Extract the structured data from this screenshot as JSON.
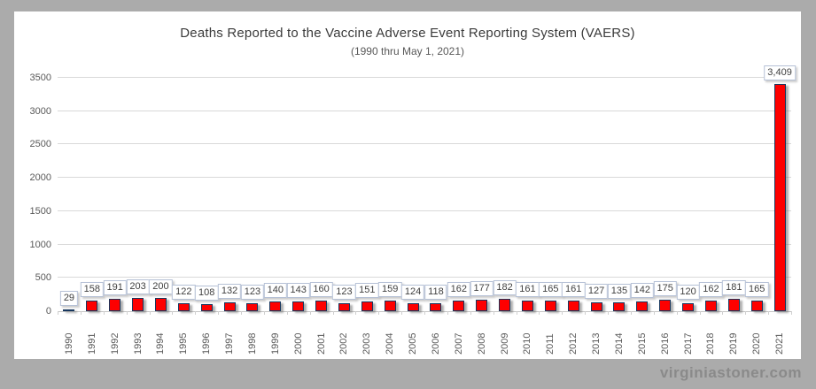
{
  "page": {
    "watermark": "virginiastoner.com"
  },
  "chart_data": {
    "type": "bar",
    "title": "Deaths Reported to the Vaccine Adverse Event Reporting System (VAERS)",
    "subtitle": "(1990 thru May 1, 2021)",
    "categories": [
      "1990",
      "1991",
      "1992",
      "1993",
      "1994",
      "1995",
      "1996",
      "1997",
      "1998",
      "1999",
      "2000",
      "2001",
      "2002",
      "2003",
      "2004",
      "2005",
      "2006",
      "2007",
      "2008",
      "2009",
      "2010",
      "2011",
      "2012",
      "2013",
      "2014",
      "2015",
      "2016",
      "2017",
      "2018",
      "2019",
      "2020",
      "2021"
    ],
    "values": [
      29,
      158,
      191,
      203,
      200,
      122,
      108,
      132,
      123,
      140,
      143,
      160,
      123,
      151,
      159,
      124,
      118,
      162,
      177,
      182,
      161,
      165,
      161,
      127,
      135,
      142,
      175,
      120,
      162,
      181,
      165,
      3409
    ],
    "value_labels": [
      "29",
      "158",
      "191",
      "203",
      "200",
      "122",
      "108",
      "132",
      "123",
      "140",
      "143",
      "160",
      "123",
      "151",
      "159",
      "124",
      "118",
      "162",
      "177",
      "182",
      "161",
      "165",
      "161",
      "127",
      "135",
      "142",
      "175",
      "120",
      "162",
      "181",
      "165",
      "3,409"
    ],
    "xlabel": "",
    "ylabel": "",
    "ylim": [
      0,
      3500
    ],
    "ytick_step": 500,
    "ytick_labels": [
      "0",
      "500",
      "1000",
      "1500",
      "2000",
      "2500",
      "3000",
      "3500"
    ],
    "grid": true,
    "legend": "none",
    "bar_color": "#fe0000",
    "bar_border_color": "#17375e"
  }
}
